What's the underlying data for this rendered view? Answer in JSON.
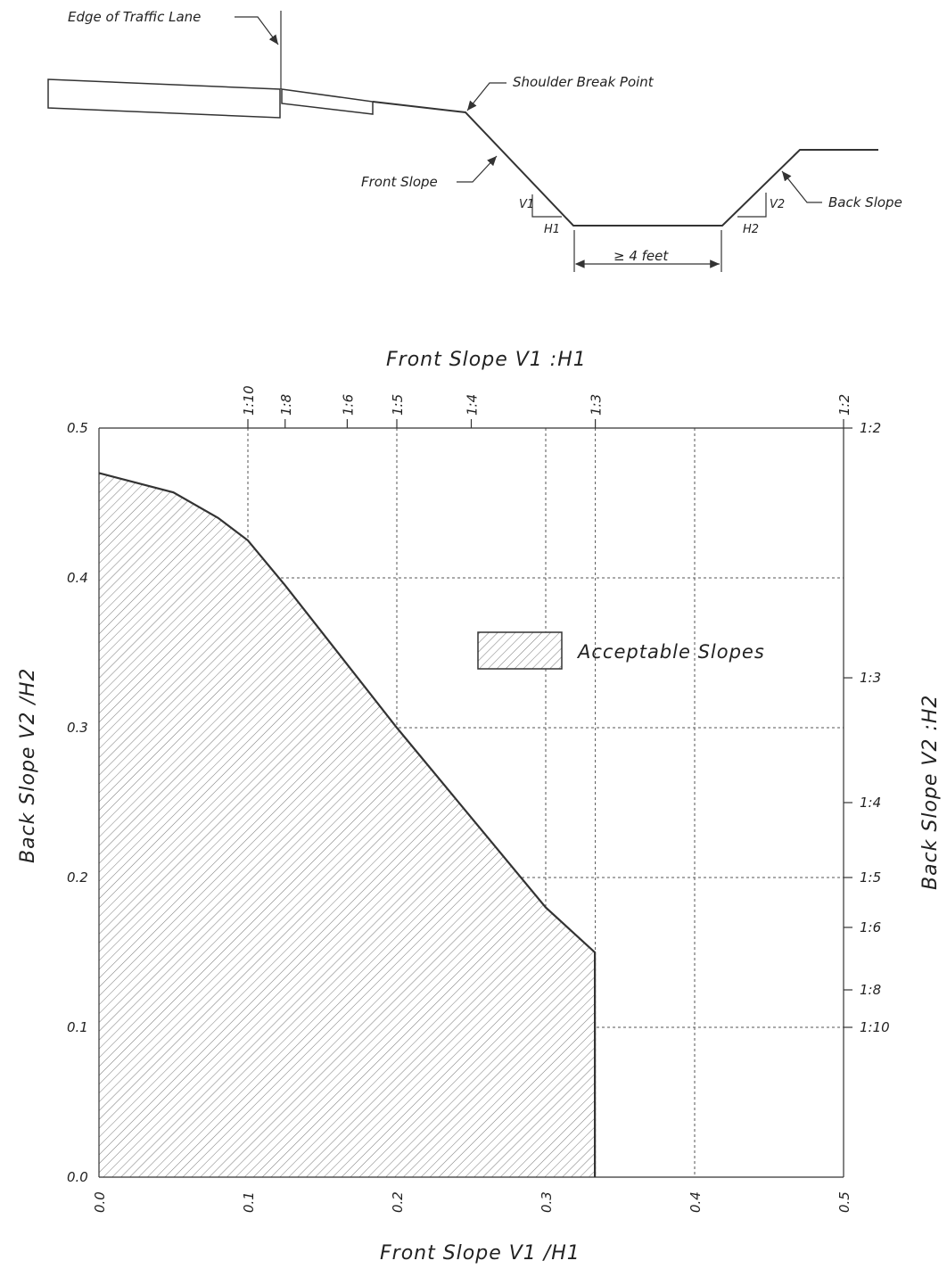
{
  "diagram": {
    "edge_of_traffic_lane": "Edge of Traffic Lane",
    "shoulder_break_point": "Shoulder Break Point",
    "front_slope": "Front Slope",
    "back_slope": "Back Slope",
    "v1": "V1",
    "h1": "H1",
    "v2": "V2",
    "h2": "H2",
    "bottom_width": "≥ 4 feet"
  },
  "chart_data": {
    "type": "area",
    "title_top": "Front Slope V1 :H1",
    "xlabel": "Front Slope V1 /H1",
    "ylabel": "Back Slope V2 /H2",
    "ylabel_right": "Back Slope V2 :H2",
    "xlim": [
      0,
      0.5
    ],
    "ylim": [
      0,
      0.5
    ],
    "x_ticks": [
      {
        "v": 0.0,
        "label": "0.0"
      },
      {
        "v": 0.1,
        "label": "0.1"
      },
      {
        "v": 0.2,
        "label": "0.2"
      },
      {
        "v": 0.3,
        "label": "0.3"
      },
      {
        "v": 0.4,
        "label": "0.4"
      },
      {
        "v": 0.5,
        "label": "0.5"
      }
    ],
    "y_ticks": [
      {
        "v": 0.0,
        "label": "0.0"
      },
      {
        "v": 0.1,
        "label": "0.1"
      },
      {
        "v": 0.2,
        "label": "0.2"
      },
      {
        "v": 0.3,
        "label": "0.3"
      },
      {
        "v": 0.4,
        "label": "0.4"
      },
      {
        "v": 0.5,
        "label": "0.5"
      }
    ],
    "top_ratio_ticks": [
      {
        "v": 0.1,
        "label": "1:10"
      },
      {
        "v": 0.125,
        "label": "1:8"
      },
      {
        "v": 0.1667,
        "label": "1:6"
      },
      {
        "v": 0.2,
        "label": "1:5"
      },
      {
        "v": 0.25,
        "label": "1:4"
      },
      {
        "v": 0.3333,
        "label": "1:3"
      },
      {
        "v": 0.5,
        "label": "1:2"
      }
    ],
    "right_ratio_ticks": [
      {
        "v": 0.5,
        "label": "1:2"
      },
      {
        "v": 0.3333,
        "label": "1:3"
      },
      {
        "v": 0.25,
        "label": "1:4"
      },
      {
        "v": 0.2,
        "label": "1:5"
      },
      {
        "v": 0.1667,
        "label": "1:6"
      },
      {
        "v": 0.125,
        "label": "1:8"
      },
      {
        "v": 0.1,
        "label": "1:10"
      }
    ],
    "vgrid": [
      0.1,
      0.2,
      0.3,
      0.4
    ],
    "hgrid": [
      0.1,
      0.2,
      0.3,
      0.4
    ],
    "series": [
      {
        "name": "Acceptable Slopes",
        "points": [
          [
            0.0,
            0.47
          ],
          [
            0.05,
            0.457
          ],
          [
            0.08,
            0.44
          ],
          [
            0.1,
            0.425
          ],
          [
            0.11,
            0.413
          ],
          [
            0.125,
            0.395
          ],
          [
            0.2,
            0.3
          ],
          [
            0.25,
            0.24
          ],
          [
            0.3,
            0.18
          ],
          [
            0.333,
            0.15
          ],
          [
            0.333,
            0.0
          ],
          [
            0.0,
            0.0
          ]
        ]
      }
    ],
    "legend": {
      "label": "Acceptable Slopes",
      "position": "upper-right"
    }
  }
}
